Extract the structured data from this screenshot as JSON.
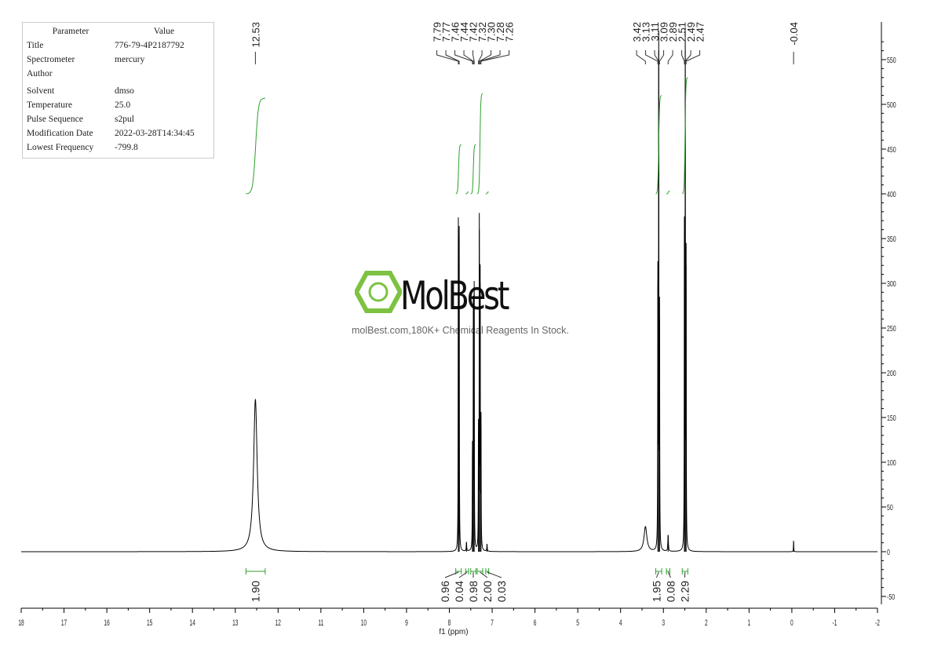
{
  "parameters": {
    "header": [
      "Parameter",
      "Value"
    ],
    "rows": [
      [
        "Title",
        "776-79-4P2187792"
      ],
      [
        "Spectrometer",
        "mercury"
      ],
      [
        "Author",
        ""
      ],
      [
        "Solvent",
        "dmso"
      ],
      [
        "Temperature",
        "25.0"
      ],
      [
        "Pulse Sequence",
        "s2pul"
      ],
      [
        "Modification Date",
        "2022-03-28T14:34:45"
      ],
      [
        "Lowest Frequency",
        "-799.8"
      ]
    ]
  },
  "watermark": {
    "brand": "MolBest",
    "tagline": "molBest.com,180K+ Chemical Reagents In Stock.",
    "color": "#7dc242"
  },
  "chart_data": {
    "type": "line",
    "xlabel": "f1 (ppm)",
    "xlim": [
      18,
      -2
    ],
    "ylim": [
      -60,
      600
    ],
    "x_ticks": [
      18,
      17,
      16,
      15,
      14,
      13,
      12,
      11,
      10,
      9,
      8,
      7,
      6,
      5,
      4,
      3,
      2,
      1,
      0,
      -1,
      -2
    ],
    "x_tick_labels": [
      "18",
      "17",
      "16",
      "15",
      "14",
      "13",
      "12",
      "11",
      "10",
      "9",
      "8",
      "7",
      "6",
      "5",
      "4",
      "3",
      "2",
      "1",
      "0",
      "-1",
      "-2"
    ],
    "y_ticks": [
      -50,
      0,
      50,
      100,
      150,
      200,
      250,
      300,
      350,
      400,
      450,
      500,
      550
    ],
    "y_tick_labels": [
      "-50",
      "0",
      "50",
      "100",
      "150",
      "200",
      "250",
      "300",
      "350",
      "400",
      "450",
      "500",
      "550"
    ],
    "y_axis_side": "right",
    "spectrum_color": "#000000",
    "integral_color": "#2ca02c",
    "peaks": [
      {
        "ppm": 12.53,
        "height": 170,
        "width": 0.05
      },
      {
        "ppm": 7.79,
        "height": 360,
        "width": 0.004
      },
      {
        "ppm": 7.77,
        "height": 350,
        "width": 0.004
      },
      {
        "ppm": 7.6,
        "height": 10,
        "width": 0.006
      },
      {
        "ppm": 7.46,
        "height": 110,
        "width": 0.004
      },
      {
        "ppm": 7.44,
        "height": 270,
        "width": 0.004
      },
      {
        "ppm": 7.42,
        "height": 290,
        "width": 0.004
      },
      {
        "ppm": 7.32,
        "height": 130,
        "width": 0.004
      },
      {
        "ppm": 7.3,
        "height": 360,
        "width": 0.004
      },
      {
        "ppm": 7.28,
        "height": 300,
        "width": 0.004
      },
      {
        "ppm": 7.26,
        "height": 140,
        "width": 0.004
      },
      {
        "ppm": 7.12,
        "height": 8,
        "width": 0.006
      },
      {
        "ppm": 3.42,
        "height": 28,
        "width": 0.04
      },
      {
        "ppm": 3.13,
        "height": 300,
        "width": 0.004
      },
      {
        "ppm": 3.11,
        "height": 560,
        "width": 0.004
      },
      {
        "ppm": 3.09,
        "height": 260,
        "width": 0.004
      },
      {
        "ppm": 2.89,
        "height": 18,
        "width": 0.008
      },
      {
        "ppm": 2.51,
        "height": 350,
        "width": 0.004
      },
      {
        "ppm": 2.49,
        "height": 560,
        "width": 0.004
      },
      {
        "ppm": 2.47,
        "height": 320,
        "width": 0.004
      },
      {
        "ppm": -0.04,
        "height": 12,
        "width": 0.004
      }
    ],
    "peak_label_groups": [
      [
        "12.53"
      ],
      [
        "7.79",
        "7.77",
        "7.46",
        "7.44",
        "7.42",
        "7.32",
        "7.30",
        "7.28",
        "7.26"
      ],
      [
        "3.42",
        "3.13",
        "3.11",
        "3.09",
        "2.89",
        "2.51",
        "2.49",
        "2.47"
      ],
      [
        "-0.04"
      ]
    ],
    "integrals": [
      {
        "from": 12.75,
        "to": 12.3,
        "value": "1.90",
        "curve_top": 507
      },
      {
        "from": 7.85,
        "to": 7.72,
        "value": "0.96",
        "curve_top": 455
      },
      {
        "from": 7.62,
        "to": 7.55,
        "value": "0.04",
        "curve_top": 402
      },
      {
        "from": 7.5,
        "to": 7.38,
        "value": "0.98",
        "curve_top": 455
      },
      {
        "from": 7.35,
        "to": 7.22,
        "value": "2.00",
        "curve_top": 512
      },
      {
        "from": 7.15,
        "to": 7.08,
        "value": "0.03",
        "curve_top": 402
      },
      {
        "from": 3.18,
        "to": 3.04,
        "value": "1.95",
        "curve_top": 510
      },
      {
        "from": 2.93,
        "to": 2.85,
        "value": "0.08",
        "curve_top": 403
      },
      {
        "from": 2.56,
        "to": 2.43,
        "value": "2.29",
        "curve_top": 530
      }
    ]
  }
}
